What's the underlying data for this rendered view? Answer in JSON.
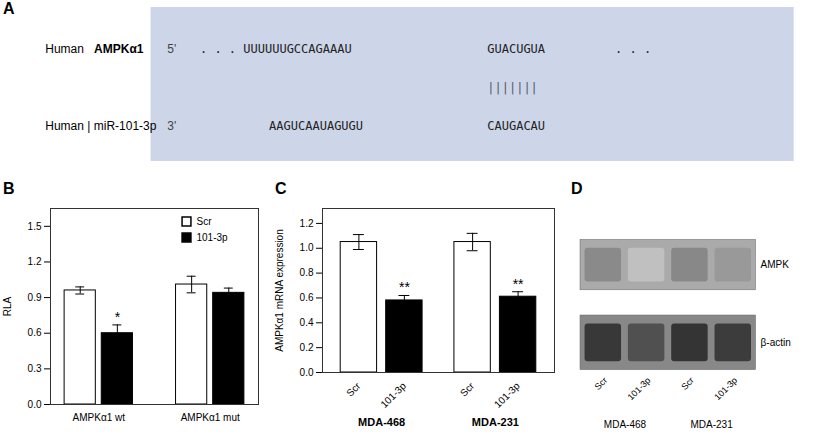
{
  "chart_data": [
    {
      "type": "sequence",
      "title": "A",
      "color": "#cdd5e8",
      "annotations": [
        [
          "Human ",
          "AMPKα1",
          "5'",
          ". . . UUUUUUGCCAGAAAU",
          "GUACUGUA",
          ". . ."
        ],
        [
          "|",
          "|",
          "|",
          "|",
          "|",
          "|",
          "|"
        ],
        [
          "Human | miR-101-3p",
          "3'",
          "AAGUCAAUAGUGU",
          "CAUGACAU"
        ]
      ]
    },
    {
      "type": "bar",
      "title": "B",
      "ylabel": "RLA",
      "categories": [
        "AMPKα1 wt",
        "AMPKα1 mut"
      ],
      "series": [
        {
          "name": "Scr",
          "color": "white",
          "values": [
            0.96,
            1.01
          ],
          "errors": [
            0.03,
            0.07
          ],
          "sig_labels": [
            null,
            null
          ]
        },
        {
          "name": "101-3p",
          "color": "black",
          "values": [
            0.6,
            0.94
          ],
          "errors": [
            0.07,
            0.04
          ],
          "sig_labels": [
            "*",
            null
          ]
        }
      ],
      "ylim": [
        0,
        1.65
      ],
      "yticks": [
        {
          "value": 0.0,
          "label": "0.0"
        },
        0.3,
        0.6,
        0.9,
        1.2,
        1.5
      ],
      "legend": "top-right"
    },
    {
      "type": "bar",
      "title": "C",
      "ylabel": "AMPKα1 mRNA expression",
      "categories": [
        "Scr",
        "101-3p",
        "Scr",
        "101-3p"
      ],
      "groups": [
        "MDA-468",
        "MDA-231"
      ],
      "values": [
        1.05,
        0.58,
        1.05,
        0.61
      ],
      "errors": [
        0.06,
        0.04,
        0.07,
        0.04
      ],
      "colors": [
        "white",
        "black",
        "white",
        "black"
      ],
      "sig_labels": [
        null,
        "**",
        null,
        "**"
      ],
      "ylim": [
        0,
        1.32
      ],
      "yticks": [
        {
          "value": 0.0,
          "label": "0.0"
        },
        0.2,
        0.4,
        0.6,
        0.8,
        {
          "value": 1.0,
          "label": "1.0"
        },
        1.2
      ]
    },
    {
      "type": "blot",
      "title": "D",
      "categories": [
        "Scr",
        "101-3p",
        "Scr",
        "101-3p"
      ],
      "groups": [
        "MDA-468",
        "MDA-231"
      ],
      "series": [
        {
          "name": "AMPK",
          "color": "#aaaaaa",
          "colors": [
            "#8a8a8a",
            "#c0c0c0",
            "#888888",
            "#999999"
          ]
        },
        {
          "name": "β-actin",
          "color": "#888888",
          "colors": [
            "#383838",
            "#505050",
            "#343434",
            "#3c3c3c"
          ]
        }
      ]
    }
  ]
}
